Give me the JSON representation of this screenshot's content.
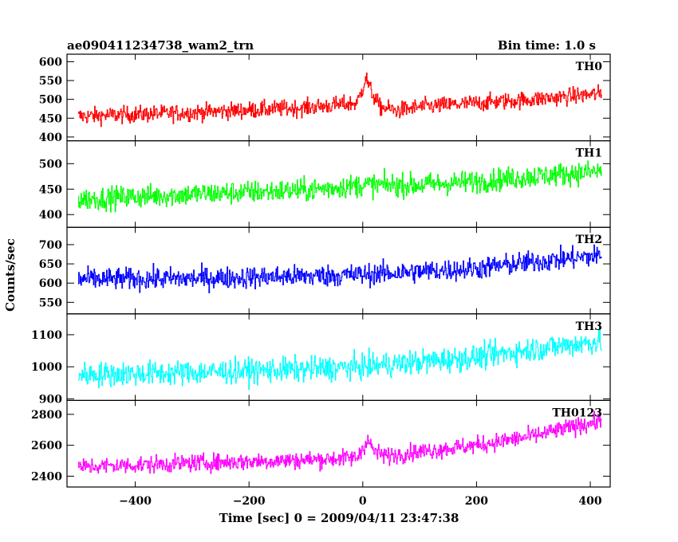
{
  "header": {
    "title": "ae090411234738_wam2_trn",
    "bin_time": "Bin time: 1.0 s"
  },
  "chart_data": {
    "type": "line",
    "xlabel": "Time [sec] 0 = 2009/04/11 23:47:38",
    "ylabel": "Counts/sec",
    "xlim": [
      -520,
      435
    ],
    "x_range_data": [
      -500,
      420
    ],
    "x_ticks": [
      -400,
      -200,
      0,
      200,
      400
    ],
    "x_tick_labels": [
      "−400",
      "−200",
      "0",
      "200",
      "400"
    ],
    "bin_time_s": 1.0,
    "panels": [
      {
        "name": "TH0",
        "color": "#ff0000",
        "ylim": [
          390,
          620
        ],
        "y_ticks": [
          400,
          450,
          500,
          550,
          600
        ],
        "trend": [
          [
            -500,
            455
          ],
          [
            -300,
            465
          ],
          [
            -100,
            478
          ],
          [
            -10,
            490
          ],
          [
            0,
            530
          ],
          [
            5,
            560
          ],
          [
            15,
            520
          ],
          [
            30,
            480
          ],
          [
            60,
            470
          ],
          [
            100,
            480
          ],
          [
            200,
            490
          ],
          [
            300,
            500
          ],
          [
            420,
            515
          ]
        ],
        "noise_amplitude": 22
      },
      {
        "name": "TH1",
        "color": "#00ff00",
        "ylim": [
          375,
          545
        ],
        "y_ticks": [
          400,
          450,
          500
        ],
        "trend": [
          [
            -500,
            430
          ],
          [
            -300,
            440
          ],
          [
            -100,
            448
          ],
          [
            0,
            458
          ],
          [
            100,
            458
          ],
          [
            200,
            465
          ],
          [
            300,
            475
          ],
          [
            420,
            485
          ]
        ],
        "noise_amplitude": 22
      },
      {
        "name": "TH2",
        "color": "#0000ff",
        "ylim": [
          520,
          745
        ],
        "y_ticks": [
          550,
          600,
          650,
          700
        ],
        "trend": [
          [
            -500,
            610
          ],
          [
            -300,
            612
          ],
          [
            -100,
            618
          ],
          [
            0,
            622
          ],
          [
            100,
            630
          ],
          [
            200,
            638
          ],
          [
            300,
            655
          ],
          [
            420,
            672
          ]
        ],
        "noise_amplitude": 28
      },
      {
        "name": "TH3",
        "color": "#00ffff",
        "ylim": [
          895,
          1165
        ],
        "y_ticks": [
          900,
          1000,
          1100
        ],
        "trend": [
          [
            -500,
            975
          ],
          [
            -300,
            982
          ],
          [
            -100,
            992
          ],
          [
            0,
            1000
          ],
          [
            100,
            1015
          ],
          [
            200,
            1030
          ],
          [
            300,
            1055
          ],
          [
            420,
            1080
          ]
        ],
        "noise_amplitude": 38
      },
      {
        "name": "TH0123",
        "color": "#ff00ff",
        "ylim": [
          2330,
          2890
        ],
        "y_ticks": [
          2400,
          2600,
          2800
        ],
        "trend": [
          [
            -500,
            2460
          ],
          [
            -300,
            2485
          ],
          [
            -100,
            2505
          ],
          [
            -10,
            2520
          ],
          [
            0,
            2580
          ],
          [
            8,
            2640
          ],
          [
            20,
            2560
          ],
          [
            40,
            2530
          ],
          [
            80,
            2550
          ],
          [
            200,
            2600
          ],
          [
            300,
            2660
          ],
          [
            420,
            2760
          ]
        ],
        "noise_amplitude": 55
      }
    ]
  }
}
